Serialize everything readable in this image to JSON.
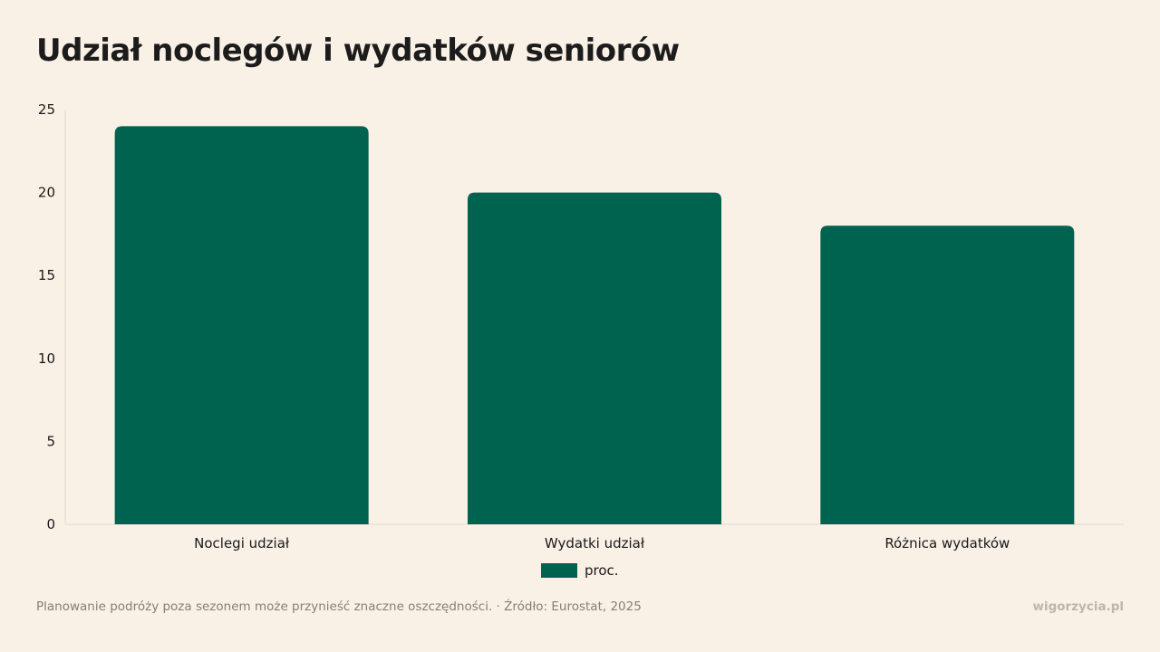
{
  "title": "Udział noclegów i wydatków seniorów",
  "colors": {
    "bar": "#006350",
    "background": "#f9f0e6"
  },
  "chart_data": {
    "type": "bar",
    "categories": [
      "Noclegi udział",
      "Wydatki udział",
      "Różnica wydatków"
    ],
    "series": [
      {
        "name": "proc.",
        "values": [
          24,
          20,
          18
        ]
      }
    ],
    "ylim": [
      0,
      25
    ],
    "yticks": [
      "0",
      "5",
      "10",
      "15",
      "20",
      "25"
    ],
    "xlabel": "",
    "ylabel": "",
    "grid": false,
    "legend_position": "bottom"
  },
  "legend": {
    "label": "proc."
  },
  "footer": {
    "note": "Planowanie podróży poza sezonem może przynieść znaczne oszczędności. · Źródło: Eurostat, 2025",
    "brand": "wigorzycia.pl"
  }
}
